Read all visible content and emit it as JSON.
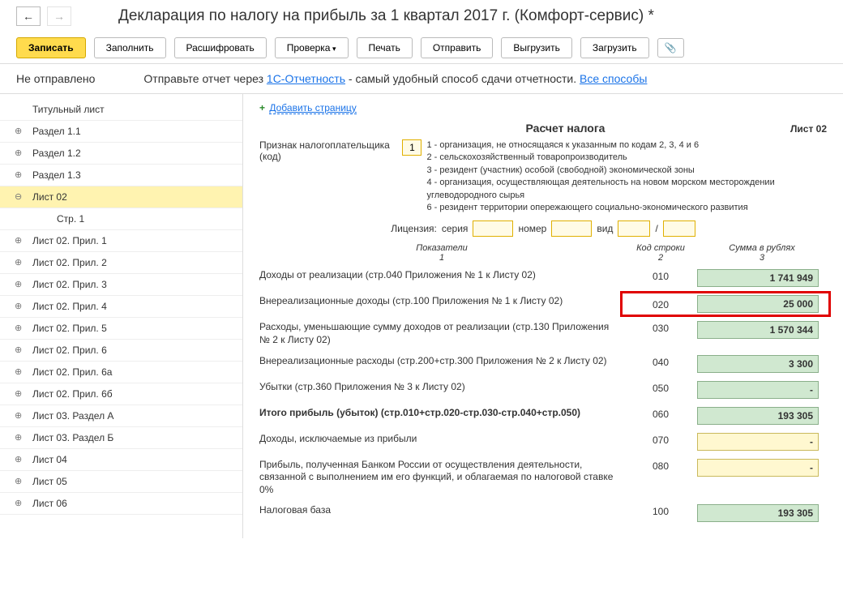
{
  "title": "Декларация по налогу на прибыль за 1 квартал 2017 г. (Комфорт-сервис) *",
  "toolbar": {
    "write": "Записать",
    "fill": "Заполнить",
    "decode": "Расшифровать",
    "check": "Проверка",
    "print": "Печать",
    "send": "Отправить",
    "export": "Выгрузить",
    "import": "Загрузить"
  },
  "status": {
    "label": "Не отправлено",
    "hint_pre": "Отправьте отчет через ",
    "hint_link": "1С-Отчетность",
    "hint_post": " - самый удобный способ сдачи отчетности. ",
    "all_ways": "Все способы"
  },
  "tree": {
    "items": [
      {
        "label": "Титульный лист",
        "expandable": false
      },
      {
        "label": "Раздел 1.1",
        "expandable": true
      },
      {
        "label": "Раздел 1.2",
        "expandable": true
      },
      {
        "label": "Раздел 1.3",
        "expandable": true
      },
      {
        "label": "Лист 02",
        "expandable": true,
        "expanded": true,
        "active": true
      },
      {
        "label": "Стр. 1",
        "child": true
      },
      {
        "label": "Лист 02. Прил. 1",
        "expandable": true
      },
      {
        "label": "Лист 02. Прил. 2",
        "expandable": true
      },
      {
        "label": "Лист 02. Прил. 3",
        "expandable": true
      },
      {
        "label": "Лист 02. Прил. 4",
        "expandable": true
      },
      {
        "label": "Лист 02. Прил. 5",
        "expandable": true
      },
      {
        "label": "Лист 02. Прил. 6",
        "expandable": true
      },
      {
        "label": "Лист 02. Прил. 6а",
        "expandable": true
      },
      {
        "label": "Лист 02. Прил. 6б",
        "expandable": true
      },
      {
        "label": "Лист 03. Раздел А",
        "expandable": true
      },
      {
        "label": "Лист 03. Раздел Б",
        "expandable": true
      },
      {
        "label": "Лист 04",
        "expandable": true
      },
      {
        "label": "Лист 05",
        "expandable": true
      },
      {
        "label": "Лист 06",
        "expandable": true
      }
    ]
  },
  "page": {
    "add_page": "Добавить страницу",
    "sheet_title": "Расчет налога",
    "sheet_no": "Лист 02",
    "taxpayer_label": "Признак налогоплательщика (код)",
    "taxpayer_code": "1",
    "code_explain": [
      "1 - организация, не относящаяся к указанным по кодам 2, 3, 4 и 6",
      "2 - сельскохозяйственный товаропроизводитель",
      "3 - резидент (участник) особой (свободной) экономической зоны",
      "4 - организация, осуществляющая деятельность на новом морском месторождении углеводородного сырья",
      "6 - резидент территории опережающего социально-экономического развития"
    ],
    "license": {
      "label": "Лицензия:",
      "series": "серия",
      "number": "номер",
      "type": "вид",
      "slash": "/"
    },
    "col_hdrs": {
      "c1": "Показатели",
      "c1n": "1",
      "c2": "Код строки",
      "c2n": "2",
      "c3": "Сумма в рублях",
      "c3n": "3"
    },
    "rows": [
      {
        "label": "Доходы от реализации (стр.040 Приложения № 1 к Листу 02)",
        "code": "010",
        "value": "1 741 949",
        "style": "green"
      },
      {
        "label": "Внереализационные доходы (стр.100 Приложения № 1 к Листу 02)",
        "code": "020",
        "value": "25 000",
        "style": "green",
        "highlight": true
      },
      {
        "label": "Расходы, уменьшающие сумму доходов от реализации (стр.130 Приложения № 2 к Листу 02)",
        "code": "030",
        "value": "1 570 344",
        "style": "green"
      },
      {
        "label": "Внереализационные расходы (стр.200+стр.300 Приложения № 2 к Листу 02)",
        "code": "040",
        "value": "3 300",
        "style": "green"
      },
      {
        "label": "Убытки (стр.360 Приложения № 3 к Листу 02)",
        "code": "050",
        "value": "-",
        "style": "green"
      },
      {
        "label": "Итого прибыль (убыток)  (стр.010+стр.020-стр.030-стр.040+стр.050)",
        "code": "060",
        "value": "193 305",
        "style": "green",
        "bold": true
      },
      {
        "label": "Доходы, исключаемые из прибыли",
        "code": "070",
        "value": "-",
        "style": "yellow"
      },
      {
        "label": "Прибыль, полученная Банком России от осуществления деятельности, связанной с выполнением им его функций, и облагаемая по налоговой ставке 0%",
        "code": "080",
        "value": "-",
        "style": "yellow"
      },
      {
        "label": "Налоговая база",
        "code": "100",
        "value": "193 305",
        "style": "green"
      }
    ]
  }
}
